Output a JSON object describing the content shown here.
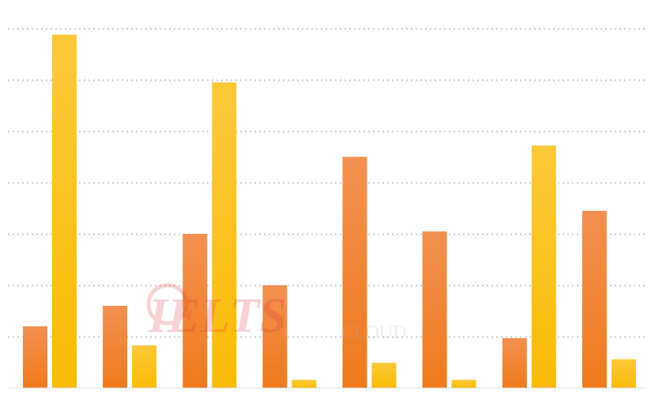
{
  "chart_data": {
    "type": "bar",
    "grid": true,
    "ylim": [
      0,
      7
    ],
    "categories": [
      "",
      "",
      "",
      "",
      "",
      "",
      "",
      ""
    ],
    "series": [
      {
        "color": "#f07f2a",
        "values": [
          1.2,
          1.6,
          3.0,
          2.0,
          4.5,
          3.05,
          0.97,
          3.45
        ]
      },
      {
        "color": "#fcc20e",
        "values": [
          6.88,
          0.83,
          5.95,
          0.16,
          0.49,
          0.16,
          4.72,
          0.56
        ]
      }
    ]
  },
  "watermark": {
    "brand": "IELTS",
    "suffix": "CLOUD"
  }
}
